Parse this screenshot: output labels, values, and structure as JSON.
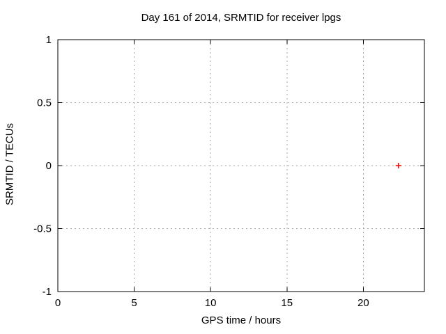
{
  "page": {
    "background_color": "#ffffff",
    "text_color": "#000000"
  },
  "chart_data": {
    "type": "scatter",
    "title": "Day 161 of 2014, SRMTID for receiver lpgs",
    "xlabel": "GPS time / hours",
    "ylabel": "SRMTID / TECUs",
    "xlim": [
      0,
      24
    ],
    "ylim": [
      -1,
      1
    ],
    "xticks": [
      0,
      5,
      10,
      15,
      20
    ],
    "xtick_labels": [
      "0",
      "5",
      "10",
      "15",
      "20"
    ],
    "yticks": [
      -1,
      -0.5,
      0,
      0.5,
      1
    ],
    "ytick_labels": [
      "-1",
      "-0.5",
      "0",
      "0.5",
      "1"
    ],
    "grid": true,
    "grid_style": "dashed",
    "grid_color": "#a6a6a6",
    "frame_color": "#000000",
    "legend_position": "none",
    "series": [
      {
        "name": "SRMTID",
        "marker": "plus",
        "color": "#ff0000",
        "points": [
          {
            "x": 22.3,
            "y": 0
          }
        ]
      }
    ]
  }
}
